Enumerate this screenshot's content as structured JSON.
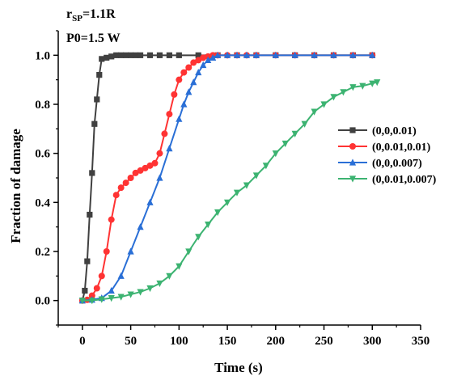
{
  "chart_data": {
    "type": "line",
    "xlabel": "Time (s)",
    "ylabel": "Fraction of  damage",
    "xlim": [
      -25,
      350
    ],
    "ylim": [
      -0.1,
      1.1
    ],
    "xticks": [
      "0",
      "50",
      "100",
      "150",
      "200",
      "250",
      "300",
      "350"
    ],
    "yticks": [
      "0.0",
      "0.2",
      "0.4",
      "0.6",
      "0.8",
      "1.0"
    ],
    "xtick_values": [
      0,
      50,
      100,
      150,
      200,
      250,
      300,
      350
    ],
    "ytick_values": [
      0,
      0.2,
      0.4,
      0.6,
      0.8,
      1.0
    ],
    "annotations": {
      "line1_main": "r",
      "line1_sub": "SP",
      "line1_rest": "=1.1R",
      "line2": "P0=1.5 W"
    },
    "legend_position": "right",
    "series": [
      {
        "name": "(0,0,0.01)",
        "color": "#404040",
        "marker": "square",
        "x": [
          0,
          2.5,
          5,
          7.5,
          10,
          12.5,
          15,
          17.5,
          20,
          25,
          30,
          35,
          40,
          45,
          50,
          55,
          60,
          70,
          80,
          90,
          100,
          120,
          140,
          160,
          180,
          200,
          220,
          240,
          260,
          280,
          300
        ],
        "y": [
          0,
          0.04,
          0.16,
          0.35,
          0.52,
          0.72,
          0.82,
          0.92,
          0.985,
          0.99,
          0.995,
          1.0,
          1.0,
          1.0,
          1.0,
          1.0,
          1.0,
          1.0,
          1.0,
          1.0,
          1.0,
          1.0,
          1.0,
          1.0,
          1.0,
          1.0,
          1.0,
          1.0,
          1.0,
          1.0,
          1.0
        ]
      },
      {
        "name": "(0,0.01,0.01)",
        "color": "#ff3333",
        "marker": "circle",
        "x": [
          0,
          5,
          10,
          15,
          20,
          25,
          30,
          35,
          40,
          45,
          50,
          55,
          60,
          65,
          70,
          75,
          80,
          85,
          90,
          95,
          100,
          105,
          110,
          115,
          120,
          125,
          130,
          135,
          140,
          150,
          160,
          170,
          180,
          200,
          220,
          240,
          260,
          280,
          300
        ],
        "y": [
          0,
          0.003,
          0.02,
          0.05,
          0.1,
          0.2,
          0.33,
          0.43,
          0.46,
          0.48,
          0.5,
          0.52,
          0.53,
          0.54,
          0.55,
          0.56,
          0.6,
          0.68,
          0.76,
          0.84,
          0.9,
          0.93,
          0.95,
          0.97,
          0.98,
          0.99,
          0.995,
          1.0,
          1.0,
          1.0,
          1.0,
          1.0,
          1.0,
          1.0,
          1.0,
          1.0,
          1.0,
          1.0,
          1.0
        ]
      },
      {
        "name": "(0,0,0.007)",
        "color": "#2a6fd6",
        "marker": "triangle-up",
        "x": [
          0,
          10,
          20,
          30,
          40,
          50,
          60,
          70,
          80,
          90,
          100,
          105,
          110,
          115,
          120,
          125,
          130,
          135,
          140,
          150,
          160,
          170,
          180,
          200,
          220,
          240,
          260,
          280,
          300
        ],
        "y": [
          0,
          0.003,
          0.01,
          0.04,
          0.1,
          0.2,
          0.3,
          0.4,
          0.5,
          0.62,
          0.74,
          0.8,
          0.85,
          0.89,
          0.93,
          0.96,
          0.98,
          0.99,
          1.0,
          1.0,
          1.0,
          1.0,
          1.0,
          1.0,
          1.0,
          1.0,
          1.0,
          1.0,
          1.0
        ]
      },
      {
        "name": "(0,0.01,0.007)",
        "color": "#3cb371",
        "marker": "triangle-down",
        "x": [
          0,
          10,
          20,
          30,
          40,
          50,
          60,
          70,
          80,
          90,
          100,
          110,
          120,
          130,
          140,
          150,
          160,
          170,
          180,
          190,
          200,
          210,
          220,
          230,
          240,
          250,
          260,
          270,
          280,
          290,
          300,
          305
        ],
        "y": [
          0,
          0.0,
          0.005,
          0.01,
          0.015,
          0.025,
          0.035,
          0.05,
          0.07,
          0.1,
          0.14,
          0.2,
          0.26,
          0.31,
          0.36,
          0.4,
          0.44,
          0.47,
          0.51,
          0.55,
          0.6,
          0.64,
          0.68,
          0.72,
          0.77,
          0.8,
          0.83,
          0.85,
          0.87,
          0.875,
          0.885,
          0.89
        ]
      }
    ]
  }
}
